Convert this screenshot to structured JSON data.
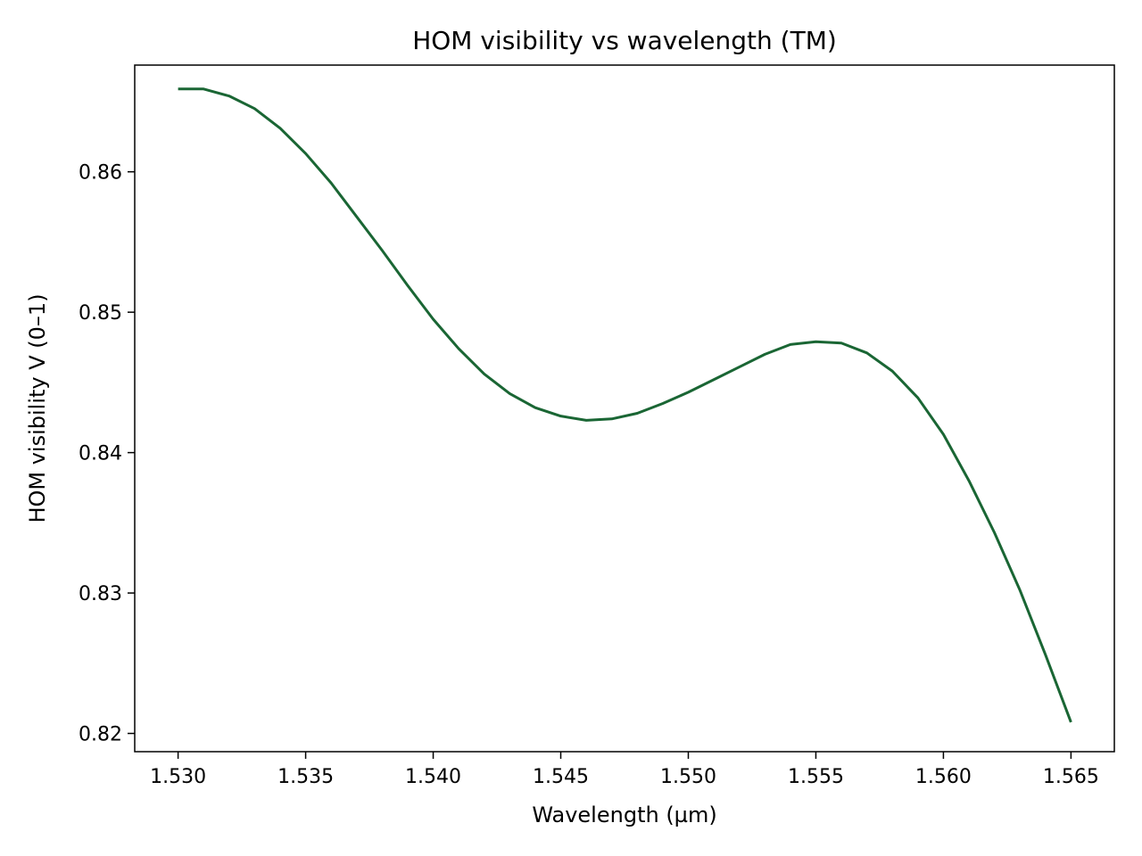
{
  "chart_data": {
    "type": "line",
    "title": "HOM visibility vs wavelength (TM)",
    "xlabel": "Wavelength (µm)",
    "ylabel": "HOM visibility V (0–1)",
    "xlim": [
      1.5283,
      1.5667
    ],
    "ylim": [
      0.8187,
      0.8676
    ],
    "xticks": [
      1.53,
      1.535,
      1.54,
      1.545,
      1.55,
      1.555,
      1.56,
      1.565
    ],
    "xtick_labels": [
      "1.530",
      "1.535",
      "1.540",
      "1.545",
      "1.550",
      "1.555",
      "1.560",
      "1.565"
    ],
    "yticks": [
      0.82,
      0.83,
      0.84,
      0.85,
      0.86
    ],
    "ytick_labels": [
      "0.82",
      "0.83",
      "0.84",
      "0.85",
      "0.86"
    ],
    "grid": false,
    "series": [
      {
        "color": "#1a6634",
        "x": [
          1.53,
          1.531,
          1.532,
          1.533,
          1.534,
          1.535,
          1.536,
          1.537,
          1.538,
          1.539,
          1.54,
          1.541,
          1.542,
          1.543,
          1.544,
          1.545,
          1.546,
          1.547,
          1.548,
          1.549,
          1.55,
          1.551,
          1.552,
          1.553,
          1.554,
          1.555,
          1.556,
          1.557,
          1.558,
          1.559,
          1.56,
          1.561,
          1.562,
          1.563,
          1.564,
          1.565
        ],
        "y": [
          0.8659,
          0.8659,
          0.8654,
          0.8645,
          0.8631,
          0.8613,
          0.8592,
          0.8568,
          0.8544,
          0.8519,
          0.8495,
          0.8474,
          0.8456,
          0.8442,
          0.8432,
          0.8426,
          0.8423,
          0.8424,
          0.8428,
          0.8435,
          0.8443,
          0.8452,
          0.8461,
          0.847,
          0.8477,
          0.8479,
          0.8478,
          0.8471,
          0.8458,
          0.8439,
          0.8413,
          0.838,
          0.8343,
          0.8302,
          0.8256,
          0.8208
        ]
      }
    ]
  }
}
